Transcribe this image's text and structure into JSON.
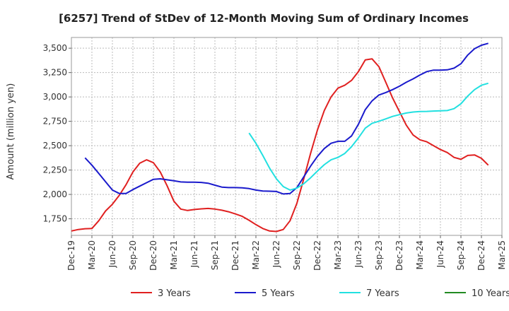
{
  "chart_data": {
    "type": "line",
    "title": "[6257]  Trend of StDev of 12-Month Moving Sum of Ordinary Incomes",
    "xlabel": "",
    "ylabel": "Amount (million yen)",
    "ylim": [
      1580,
      3610
    ],
    "yticks": [
      1750,
      2000,
      2250,
      2500,
      2750,
      3000,
      3250,
      3500
    ],
    "ytick_labels": [
      "1,750",
      "2,000",
      "2,250",
      "2,500",
      "2,750",
      "3,000",
      "3,250",
      "3,500"
    ],
    "xlim": [
      "2019-12",
      "2025-03"
    ],
    "xtick_labels": [
      "Dec-19",
      "Mar-20",
      "Jun-20",
      "Sep-20",
      "Dec-20",
      "Mar-21",
      "Jun-21",
      "Sep-21",
      "Dec-21",
      "Mar-22",
      "Jun-22",
      "Sep-22",
      "Dec-22",
      "Mar-23",
      "Jun-23",
      "Sep-23",
      "Dec-23",
      "Mar-24",
      "Jun-24",
      "Sep-24",
      "Dec-24",
      "Mar-25"
    ],
    "grid": true,
    "legend_position": "bottom",
    "series": [
      {
        "name": "3 Years",
        "color": "#e02020",
        "points": [
          [
            "2019-12",
            1625
          ],
          [
            "2020-01",
            1640
          ],
          [
            "2020-02",
            1648
          ],
          [
            "2020-03",
            1650
          ],
          [
            "2020-04",
            1730
          ],
          [
            "2020-05",
            1830
          ],
          [
            "2020-06",
            1900
          ],
          [
            "2020-07",
            1990
          ],
          [
            "2020-08",
            2100
          ],
          [
            "2020-09",
            2230
          ],
          [
            "2020-10",
            2320
          ],
          [
            "2020-11",
            2355
          ],
          [
            "2020-12",
            2325
          ],
          [
            "2021-01",
            2230
          ],
          [
            "2021-02",
            2090
          ],
          [
            "2021-03",
            1930
          ],
          [
            "2021-04",
            1850
          ],
          [
            "2021-05",
            1835
          ],
          [
            "2021-06",
            1845
          ],
          [
            "2021-07",
            1852
          ],
          [
            "2021-08",
            1856
          ],
          [
            "2021-09",
            1850
          ],
          [
            "2021-10",
            1838
          ],
          [
            "2021-11",
            1822
          ],
          [
            "2021-12",
            1800
          ],
          [
            "2022-01",
            1775
          ],
          [
            "2022-02",
            1735
          ],
          [
            "2022-03",
            1690
          ],
          [
            "2022-04",
            1650
          ],
          [
            "2022-05",
            1625
          ],
          [
            "2022-06",
            1620
          ],
          [
            "2022-07",
            1640
          ],
          [
            "2022-08",
            1730
          ],
          [
            "2022-09",
            1910
          ],
          [
            "2022-10",
            2160
          ],
          [
            "2022-11",
            2420
          ],
          [
            "2022-12",
            2660
          ],
          [
            "2023-01",
            2860
          ],
          [
            "2023-02",
            3000
          ],
          [
            "2023-03",
            3090
          ],
          [
            "2023-04",
            3120
          ],
          [
            "2023-05",
            3170
          ],
          [
            "2023-06",
            3260
          ],
          [
            "2023-07",
            3380
          ],
          [
            "2023-08",
            3390
          ],
          [
            "2023-09",
            3310
          ],
          [
            "2023-10",
            3150
          ],
          [
            "2023-11",
            2990
          ],
          [
            "2023-12",
            2850
          ],
          [
            "2024-01",
            2710
          ],
          [
            "2024-02",
            2610
          ],
          [
            "2024-03",
            2560
          ],
          [
            "2024-04",
            2540
          ],
          [
            "2024-05",
            2500
          ],
          [
            "2024-06",
            2460
          ],
          [
            "2024-07",
            2430
          ],
          [
            "2024-08",
            2380
          ],
          [
            "2024-09",
            2360
          ],
          [
            "2024-10",
            2400
          ],
          [
            "2024-11",
            2405
          ],
          [
            "2024-12",
            2370
          ],
          [
            "2025-01",
            2300
          ]
        ]
      },
      {
        "name": "5 Years",
        "color": "#1a1acc",
        "points": [
          [
            "2020-02",
            2375
          ],
          [
            "2020-03",
            2300
          ],
          [
            "2020-04",
            2215
          ],
          [
            "2020-05",
            2130
          ],
          [
            "2020-06",
            2045
          ],
          [
            "2020-07",
            2010
          ],
          [
            "2020-08",
            2010
          ],
          [
            "2020-09",
            2050
          ],
          [
            "2020-10",
            2085
          ],
          [
            "2020-11",
            2120
          ],
          [
            "2020-12",
            2155
          ],
          [
            "2021-01",
            2160
          ],
          [
            "2021-02",
            2150
          ],
          [
            "2021-03",
            2140
          ],
          [
            "2021-04",
            2128
          ],
          [
            "2021-05",
            2125
          ],
          [
            "2021-06",
            2125
          ],
          [
            "2021-07",
            2123
          ],
          [
            "2021-08",
            2115
          ],
          [
            "2021-09",
            2095
          ],
          [
            "2021-10",
            2075
          ],
          [
            "2021-11",
            2070
          ],
          [
            "2021-12",
            2070
          ],
          [
            "2022-01",
            2068
          ],
          [
            "2022-02",
            2060
          ],
          [
            "2022-03",
            2045
          ],
          [
            "2022-04",
            2035
          ],
          [
            "2022-05",
            2033
          ],
          [
            "2022-06",
            2030
          ],
          [
            "2022-07",
            2005
          ],
          [
            "2022-08",
            2010
          ],
          [
            "2022-09",
            2070
          ],
          [
            "2022-10",
            2180
          ],
          [
            "2022-11",
            2290
          ],
          [
            "2022-12",
            2390
          ],
          [
            "2023-01",
            2470
          ],
          [
            "2023-02",
            2525
          ],
          [
            "2023-03",
            2545
          ],
          [
            "2023-04",
            2545
          ],
          [
            "2023-05",
            2600
          ],
          [
            "2023-06",
            2720
          ],
          [
            "2023-07",
            2870
          ],
          [
            "2023-08",
            2960
          ],
          [
            "2023-09",
            3020
          ],
          [
            "2023-10",
            3045
          ],
          [
            "2023-11",
            3075
          ],
          [
            "2023-12",
            3110
          ],
          [
            "2024-01",
            3150
          ],
          [
            "2024-02",
            3185
          ],
          [
            "2024-03",
            3225
          ],
          [
            "2024-04",
            3260
          ],
          [
            "2024-05",
            3275
          ],
          [
            "2024-06",
            3275
          ],
          [
            "2024-07",
            3278
          ],
          [
            "2024-08",
            3295
          ],
          [
            "2024-09",
            3340
          ],
          [
            "2024-10",
            3430
          ],
          [
            "2024-11",
            3495
          ],
          [
            "2024-12",
            3530
          ],
          [
            "2025-01",
            3550
          ]
        ]
      },
      {
        "name": "7 Years",
        "color": "#22e0e0",
        "points": [
          [
            "2022-02",
            2630
          ],
          [
            "2022-03",
            2525
          ],
          [
            "2022-04",
            2400
          ],
          [
            "2022-05",
            2270
          ],
          [
            "2022-06",
            2160
          ],
          [
            "2022-07",
            2080
          ],
          [
            "2022-08",
            2045
          ],
          [
            "2022-09",
            2065
          ],
          [
            "2022-10",
            2110
          ],
          [
            "2022-11",
            2170
          ],
          [
            "2022-12",
            2240
          ],
          [
            "2023-01",
            2305
          ],
          [
            "2023-02",
            2355
          ],
          [
            "2023-03",
            2380
          ],
          [
            "2023-04",
            2420
          ],
          [
            "2023-05",
            2490
          ],
          [
            "2023-06",
            2580
          ],
          [
            "2023-07",
            2680
          ],
          [
            "2023-08",
            2730
          ],
          [
            "2023-09",
            2750
          ],
          [
            "2023-10",
            2775
          ],
          [
            "2023-11",
            2800
          ],
          [
            "2023-12",
            2818
          ],
          [
            "2024-01",
            2835
          ],
          [
            "2024-02",
            2845
          ],
          [
            "2024-03",
            2850
          ],
          [
            "2024-04",
            2852
          ],
          [
            "2024-05",
            2855
          ],
          [
            "2024-06",
            2858
          ],
          [
            "2024-07",
            2860
          ],
          [
            "2024-08",
            2880
          ],
          [
            "2024-09",
            2930
          ],
          [
            "2024-10",
            3010
          ],
          [
            "2024-11",
            3075
          ],
          [
            "2024-12",
            3120
          ],
          [
            "2025-01",
            3140
          ]
        ]
      },
      {
        "name": "10 Years",
        "color": "#228b22",
        "points": []
      }
    ]
  }
}
